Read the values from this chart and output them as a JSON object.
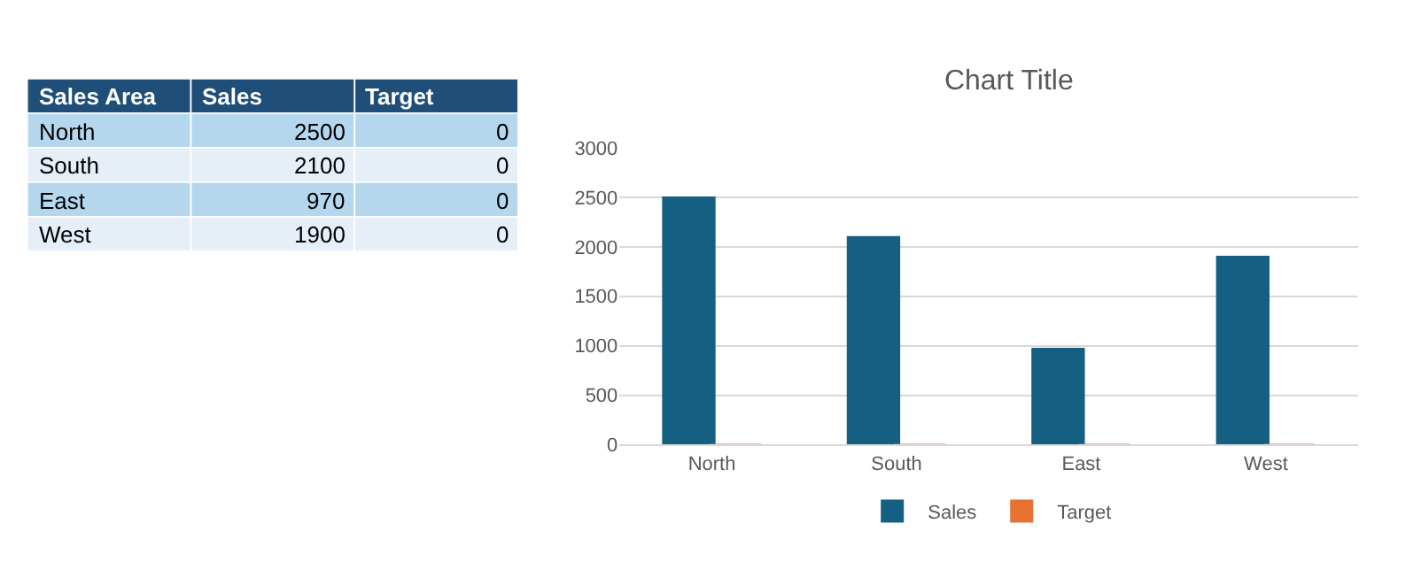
{
  "chart_data": [
    {
      "type": "other",
      "annotations": [
        "Sales Area",
        "Sales",
        "Target",
        "North",
        "2500",
        "0",
        "South",
        "2100",
        "0",
        "East",
        "970",
        "0",
        "West",
        "1900",
        "0"
      ]
    },
    {
      "type": "bar",
      "title": "Chart Title",
      "categories": [
        "North",
        "South",
        "East",
        "West"
      ],
      "series": [
        {
          "name": "Sales",
          "color": "#156082",
          "values": [
            2500,
            2100,
            970,
            1900
          ]
        },
        {
          "name": "Target",
          "color": "#e97132",
          "values": [
            0,
            0,
            0,
            0
          ]
        }
      ],
      "ylim": [
        0,
        3000
      ],
      "yticks": [
        0,
        500,
        1000,
        1500,
        2000,
        2500,
        3000
      ],
      "grid": "y",
      "legend": "bottom"
    }
  ]
}
